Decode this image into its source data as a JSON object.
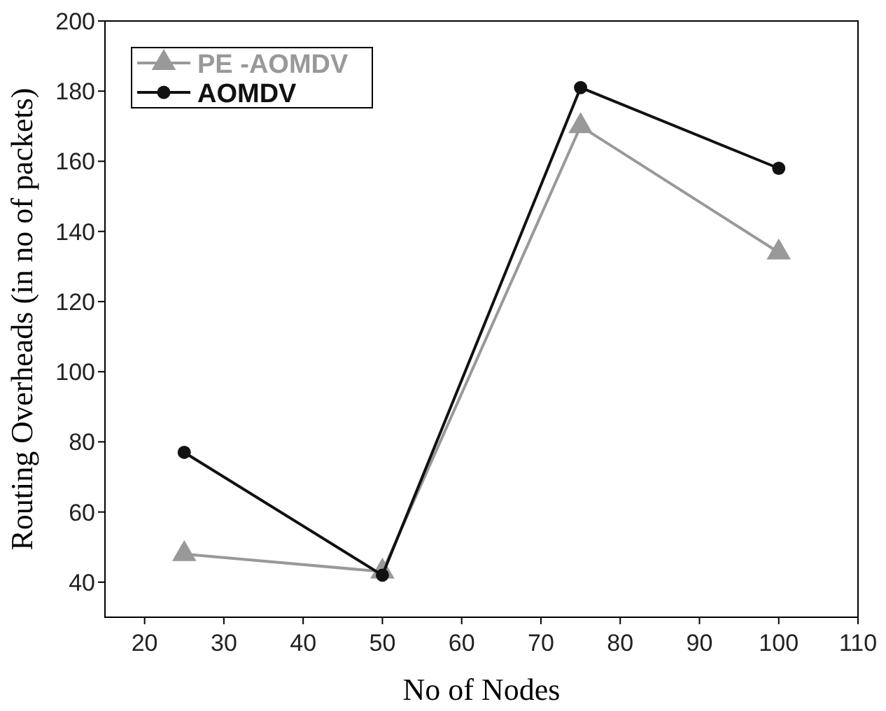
{
  "chart_data": {
    "type": "line",
    "xlabel": "No of Nodes",
    "ylabel": "Routing Overheads (in no of packets)",
    "x": [
      25,
      50,
      75,
      100
    ],
    "series": [
      {
        "name": "PE -AOMDV",
        "color": "#999999",
        "marker": "triangle",
        "values": [
          48,
          43,
          170,
          134
        ]
      },
      {
        "name": "AOMDV",
        "color": "#111111",
        "marker": "circle",
        "values": [
          77,
          42,
          181,
          158
        ]
      }
    ],
    "xlim": [
      15,
      110
    ],
    "xticks": [
      20,
      30,
      40,
      50,
      60,
      70,
      80,
      90,
      100,
      110
    ],
    "ylim": [
      30,
      200
    ],
    "yticks": [
      40,
      60,
      80,
      100,
      120,
      140,
      160,
      180,
      200
    ],
    "grid": false,
    "legend": "top left"
  }
}
